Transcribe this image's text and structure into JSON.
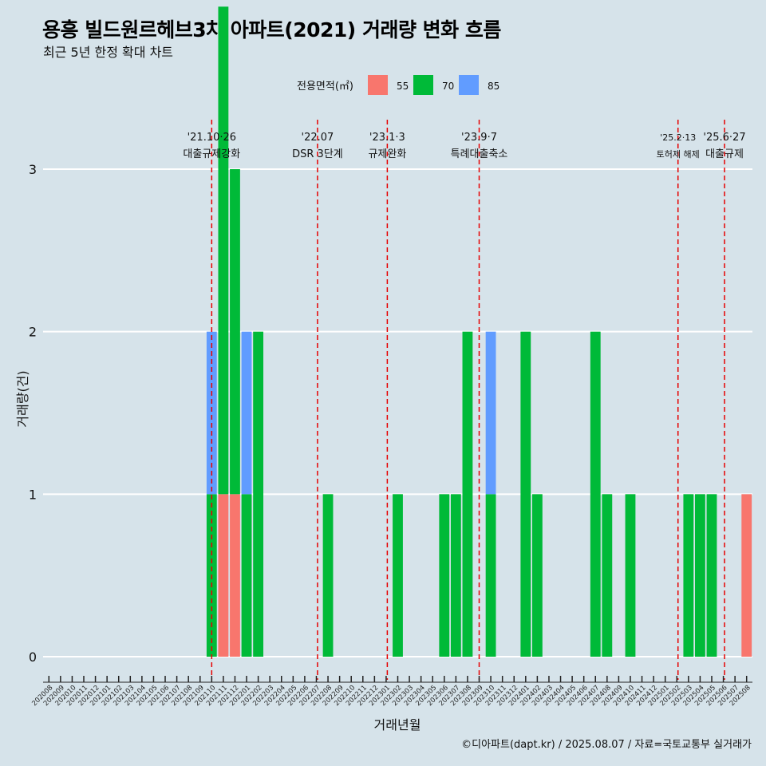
{
  "title": "용흥 빌드원르헤브3차 아파트(2021) 거래량 변화 흐름",
  "subtitle": "최근 5년 한정 확대 차트",
  "caption": "©디아파트(dapt.kr) / 2025.08.07 / 자료=국토교통부 실거래가",
  "chart_data": {
    "type": "bar",
    "stacked": true,
    "xlabel": "거래년월",
    "ylabel": "거래량(건)",
    "ylim": [
      0,
      3
    ],
    "yticks": [
      0,
      1,
      2,
      3
    ],
    "grid": true,
    "legend_title": "전용면적(㎡)",
    "legend_position": "top",
    "categories": [
      "202008",
      "202009",
      "202010",
      "202011",
      "202012",
      "202101",
      "202102",
      "202103",
      "202104",
      "202105",
      "202106",
      "202107",
      "202108",
      "202109",
      "202110",
      "202111",
      "202112",
      "202201",
      "202202",
      "202203",
      "202204",
      "202205",
      "202206",
      "202207",
      "202208",
      "202209",
      "202210",
      "202211",
      "202212",
      "202301",
      "202302",
      "202303",
      "202304",
      "202305",
      "202306",
      "202307",
      "202308",
      "202309",
      "202310",
      "202311",
      "202312",
      "202401",
      "202402",
      "202403",
      "202404",
      "202405",
      "202406",
      "202407",
      "202408",
      "202409",
      "202410",
      "202411",
      "202412",
      "202501",
      "202502",
      "202503",
      "202504",
      "202505",
      "202506",
      "202507",
      "202508"
    ],
    "series": [
      {
        "name": "55",
        "color": "#F8766D",
        "points": [
          [
            "202111",
            1
          ],
          [
            "202112",
            1
          ],
          [
            "202508",
            1
          ]
        ]
      },
      {
        "name": "70",
        "color": "#00BA38",
        "points": [
          [
            "202110",
            1
          ],
          [
            "202111",
            3
          ],
          [
            "202112",
            2
          ],
          [
            "202201",
            1
          ],
          [
            "202202",
            2
          ],
          [
            "202208",
            1
          ],
          [
            "202302",
            1
          ],
          [
            "202306",
            1
          ],
          [
            "202307",
            1
          ],
          [
            "202308",
            2
          ],
          [
            "202310",
            1
          ],
          [
            "202401",
            2
          ],
          [
            "202402",
            1
          ],
          [
            "202407",
            2
          ],
          [
            "202408",
            1
          ],
          [
            "202410",
            1
          ],
          [
            "202503",
            1
          ],
          [
            "202504",
            1
          ],
          [
            "202505",
            1
          ]
        ]
      },
      {
        "name": "85",
        "color": "#619CFF",
        "points": [
          [
            "202110",
            1
          ],
          [
            "202201",
            1
          ],
          [
            "202310",
            1
          ]
        ]
      }
    ],
    "events": [
      {
        "date_label": "'21.10·26",
        "text": "대출규제강화",
        "category": "202110",
        "offset": 0.5,
        "small": false
      },
      {
        "date_label": "'22.07",
        "text": "DSR 3단계",
        "category": "202207",
        "offset": 0.6,
        "small": false
      },
      {
        "date_label": "'23.1·3",
        "text": "규제완화",
        "category": "202301",
        "offset": 0.6,
        "small": false
      },
      {
        "date_label": "'23.9·7",
        "text": "특례대출축소",
        "category": "202309",
        "offset": 0.5,
        "small": false
      },
      {
        "date_label": "'25.2·13",
        "text": "토허제 해제",
        "category": "202502",
        "offset": 0.6,
        "small": true
      },
      {
        "date_label": "'25.6·27",
        "text": "대출규제",
        "category": "202506",
        "offset": 0.6,
        "small": false
      }
    ],
    "event_line_color": "#e60000"
  }
}
